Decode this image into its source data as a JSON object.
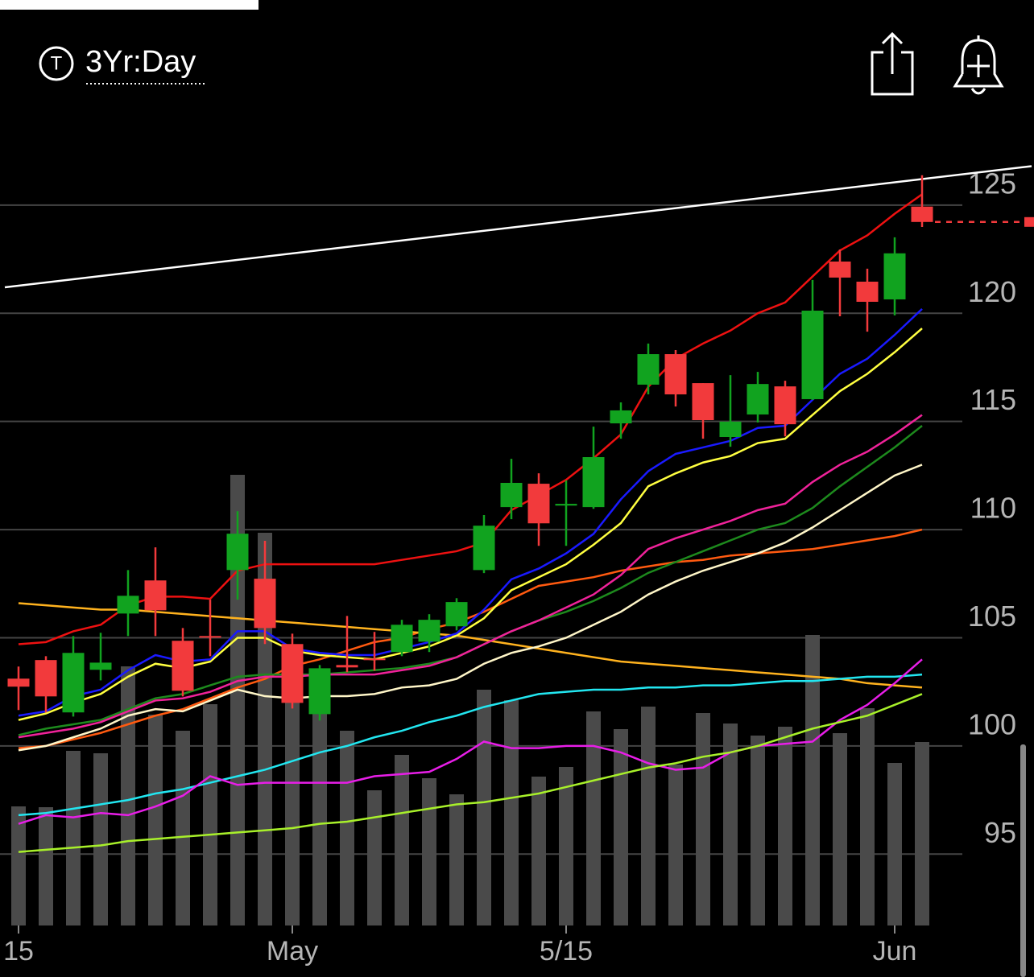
{
  "header": {
    "icon_letter": "T",
    "range_label": "3Yr:Day"
  },
  "chart_data": {
    "type": "candlestick",
    "categories": [
      "15",
      null,
      null,
      null,
      null,
      null,
      null,
      null,
      null,
      null,
      "May",
      null,
      null,
      null,
      null,
      null,
      null,
      null,
      null,
      null,
      "5/15",
      null,
      null,
      null,
      null,
      null,
      null,
      null,
      null,
      null,
      null,
      null,
      "Jun",
      null
    ],
    "open": [
      103.11,
      103.97,
      101.55,
      103.52,
      106.12,
      107.65,
      104.86,
      105.08,
      108.13,
      107.73,
      104.71,
      101.47,
      103.74,
      104.04,
      104.34,
      104.82,
      105.53,
      108.13,
      111.04,
      112.12,
      111.11,
      111.04,
      114.91,
      116.7,
      118.11,
      116.77,
      114.28,
      115.32,
      116.62,
      116.03,
      122.39,
      121.46,
      120.64,
      124.93
    ],
    "high": [
      103.67,
      104.15,
      105.08,
      105.23,
      108.13,
      109.18,
      105.45,
      106.76,
      110.85,
      109.48,
      105.19,
      103.74,
      106.01,
      105.27,
      105.83,
      106.09,
      106.83,
      110.67,
      113.27,
      112.6,
      112.27,
      114.76,
      115.88,
      118.6,
      118.3,
      116.77,
      117.14,
      117.29,
      116.88,
      121.54,
      122.95,
      122.06,
      123.51,
      126.38
    ],
    "low": [
      101.66,
      101.55,
      101.36,
      103.03,
      105.08,
      105.08,
      102.29,
      104.15,
      106.76,
      104.71,
      101.73,
      101.17,
      103.41,
      103.48,
      104.15,
      104.34,
      105.34,
      107.99,
      110.48,
      109.25,
      109.25,
      110.96,
      114.2,
      116.25,
      115.69,
      114.2,
      113.83,
      114.95,
      114.31,
      115.99,
      119.86,
      119.15,
      119.9,
      123.99
    ],
    "close": [
      102.74,
      102.29,
      104.3,
      103.85,
      106.94,
      106.27,
      102.55,
      105.01,
      109.81,
      105.45,
      101.99,
      103.59,
      103.63,
      103.97,
      105.6,
      105.83,
      106.65,
      110.18,
      112.16,
      110.29,
      111.19,
      113.35,
      115.51,
      118.11,
      116.25,
      115.06,
      114.99,
      116.73,
      114.87,
      120.12,
      121.65,
      120.53,
      122.77,
      124.22
    ],
    "volume": [
      148,
      147,
      217,
      214,
      322,
      262,
      242,
      275,
      560,
      488,
      280,
      270,
      242,
      168,
      212,
      183,
      163,
      293,
      280,
      185,
      197,
      266,
      244,
      272,
      200,
      264,
      251,
      236,
      247,
      361,
      239,
      270,
      202,
      228
    ],
    "volume_lim": [
      0,
      1000
    ],
    "up_color": "#11a31f",
    "down_color": "#f23a3c",
    "volume_color": "#4a4a4a",
    "last_price_color": "#f23a3c",
    "ylim": [
      91.7,
      128.9
    ],
    "yticks": [
      95,
      100,
      105,
      110,
      115,
      120,
      125
    ],
    "grid": true,
    "trendline": {
      "x": [
        -0.5,
        37
      ],
      "values": [
        121.2,
        126.8
      ],
      "color": "#ffffff"
    },
    "series": [
      {
        "color": "#ee1111",
        "values": [
          104.7,
          104.8,
          105.3,
          105.6,
          106.5,
          106.9,
          106.9,
          106.8,
          108.1,
          108.4,
          108.4,
          108.4,
          108.4,
          108.4,
          108.6,
          108.8,
          109.0,
          109.4,
          110.9,
          111.6,
          112.3,
          113.3,
          114.4,
          116.6,
          117.9,
          118.6,
          119.2,
          120.0,
          120.5,
          121.7,
          122.9,
          123.6,
          124.6,
          125.5
        ]
      },
      {
        "color": "#ff5a10",
        "values": [
          99.9,
          100.0,
          100.3,
          100.6,
          101.0,
          101.4,
          101.7,
          102.2,
          102.7,
          103.1,
          103.7,
          104.0,
          104.4,
          104.8,
          105.0,
          105.4,
          105.7,
          106.2,
          106.8,
          107.4,
          107.6,
          107.8,
          108.1,
          108.3,
          108.5,
          108.6,
          108.8,
          108.9,
          109.0,
          109.1,
          109.3,
          109.5,
          109.7,
          110.0
        ]
      },
      {
        "color": "#ffb21e",
        "values": [
          106.6,
          106.5,
          106.4,
          106.3,
          106.3,
          106.2,
          106.1,
          106.0,
          105.9,
          105.8,
          105.7,
          105.6,
          105.5,
          105.4,
          105.3,
          105.2,
          105.1,
          104.9,
          104.7,
          104.5,
          104.3,
          104.1,
          103.9,
          103.8,
          103.7,
          103.6,
          103.5,
          103.4,
          103.3,
          103.2,
          103.1,
          102.9,
          102.8,
          102.7
        ]
      },
      {
        "color": "#22e6f0",
        "values": [
          96.8,
          96.9,
          97.1,
          97.3,
          97.5,
          97.8,
          98.0,
          98.3,
          98.6,
          98.9,
          99.3,
          99.7,
          100.0,
          100.4,
          100.7,
          101.1,
          101.4,
          101.8,
          102.1,
          102.4,
          102.5,
          102.6,
          102.6,
          102.7,
          102.7,
          102.8,
          102.8,
          102.9,
          103.0,
          103.0,
          103.1,
          103.2,
          103.2,
          103.3
        ]
      },
      {
        "color": "#e81ee8",
        "values": [
          96.4,
          96.8,
          96.7,
          96.9,
          96.8,
          97.2,
          97.7,
          98.6,
          98.2,
          98.3,
          98.3,
          98.3,
          98.3,
          98.6,
          98.7,
          98.8,
          99.4,
          100.2,
          99.9,
          99.9,
          100.0,
          100.0,
          99.7,
          99.2,
          98.9,
          99.0,
          99.7,
          100.0,
          100.1,
          100.2,
          101.2,
          101.9,
          102.9,
          104.0
        ]
      },
      {
        "color": "#a8f02a",
        "values": [
          95.1,
          95.2,
          95.3,
          95.4,
          95.6,
          95.7,
          95.8,
          95.9,
          96.0,
          96.1,
          96.2,
          96.4,
          96.5,
          96.7,
          96.9,
          97.1,
          97.3,
          97.4,
          97.6,
          97.8,
          98.1,
          98.4,
          98.7,
          99.0,
          99.2,
          99.5,
          99.7,
          100.0,
          100.4,
          100.8,
          101.1,
          101.4,
          101.9,
          102.4
        ]
      },
      {
        "color": "#fff6c8",
        "values": [
          99.8,
          100.0,
          100.4,
          100.8,
          101.4,
          101.7,
          101.6,
          102.1,
          102.6,
          102.3,
          102.2,
          102.3,
          102.3,
          102.4,
          102.7,
          102.8,
          103.1,
          103.8,
          104.3,
          104.6,
          105.0,
          105.6,
          106.2,
          107.0,
          107.6,
          108.1,
          108.5,
          108.9,
          109.4,
          110.1,
          110.9,
          111.7,
          112.5,
          113.0
        ]
      },
      {
        "color": "#1d8a1d",
        "values": [
          100.5,
          100.8,
          101.0,
          101.2,
          101.7,
          102.2,
          102.4,
          102.8,
          103.2,
          103.3,
          103.3,
          103.3,
          103.4,
          103.5,
          103.6,
          103.8,
          104.1,
          104.7,
          105.3,
          105.8,
          106.2,
          106.7,
          107.3,
          108.0,
          108.5,
          109.0,
          109.5,
          110.0,
          110.3,
          111.0,
          112.0,
          112.9,
          113.8,
          114.8
        ]
      },
      {
        "color": "#f0229a",
        "values": [
          100.4,
          100.6,
          100.8,
          101.1,
          101.6,
          102.1,
          102.2,
          102.5,
          103.0,
          103.2,
          103.2,
          103.3,
          103.3,
          103.3,
          103.5,
          103.7,
          104.1,
          104.7,
          105.3,
          105.8,
          106.4,
          107.0,
          107.9,
          109.1,
          109.6,
          110.0,
          110.4,
          110.9,
          111.2,
          112.2,
          113.0,
          113.6,
          114.4,
          115.3
        ]
      },
      {
        "color": "#ffff40",
        "values": [
          101.2,
          101.5,
          102.0,
          102.4,
          103.2,
          103.8,
          103.6,
          103.9,
          105.0,
          105.0,
          104.4,
          104.2,
          104.1,
          104.0,
          104.3,
          104.6,
          105.1,
          105.9,
          107.2,
          107.8,
          108.4,
          109.3,
          110.3,
          112.0,
          112.6,
          113.1,
          113.4,
          114.0,
          114.2,
          115.3,
          116.4,
          117.2,
          118.2,
          119.3
        ]
      },
      {
        "color": "#1a1aff",
        "values": [
          101.4,
          101.6,
          102.3,
          102.6,
          103.5,
          104.2,
          103.9,
          104.0,
          105.3,
          105.3,
          104.5,
          104.3,
          104.2,
          104.2,
          104.5,
          104.8,
          105.2,
          106.3,
          107.7,
          108.2,
          108.9,
          109.8,
          111.4,
          112.7,
          113.5,
          113.8,
          114.1,
          114.7,
          114.8,
          116.0,
          117.2,
          117.9,
          119.0,
          120.2
        ]
      }
    ]
  }
}
